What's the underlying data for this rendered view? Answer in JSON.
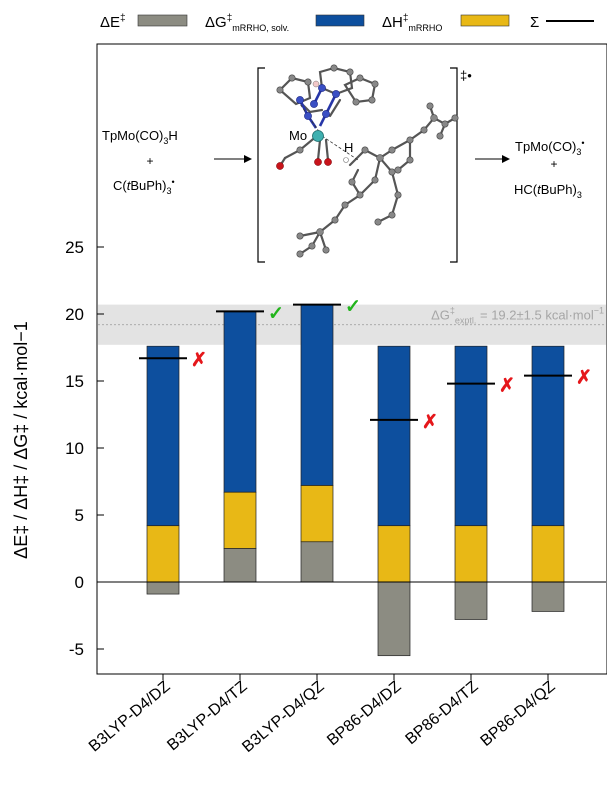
{
  "legend": {
    "items": [
      {
        "label": "ΔE",
        "sup": "‡",
        "sub": "",
        "color": "#8c8c82",
        "kind": "box"
      },
      {
        "label": "ΔG",
        "sup": "‡",
        "sub": "mRRHO, solv.",
        "color": "#0d4f9e",
        "kind": "box"
      },
      {
        "label": "ΔH",
        "sup": "‡",
        "sub": "mRRHO",
        "color": "#e8b816",
        "kind": "box"
      },
      {
        "label": "Σ",
        "sup": "",
        "sub": "",
        "color": "#000000",
        "kind": "line"
      }
    ]
  },
  "scheme": {
    "reactant1": "TpMo(CO)",
    "reactant1_sub": "3",
    "reactant1_tail": "H",
    "plus": "+",
    "reactant2_pre": "C(",
    "reactant2_t": "t",
    "reactant2_post": "BuPh)",
    "reactant2_sub": "3",
    "reactant2_sup": "•",
    "ts_mark": "‡•",
    "mo_label": "Mo",
    "h_label": "H",
    "product1": "TpMo(CO)",
    "product1_sub": "3",
    "product1_sup": "•",
    "product2_pre": "HC(",
    "product2_t": "t",
    "product2_post": "BuPh)",
    "product2_sub": "3",
    "arrow": "→"
  },
  "chart_data": {
    "type": "bar",
    "categories": [
      "B3LYP-D4/DZ",
      "B3LYP-D4/TZ",
      "B3LYP-D4/QZ",
      "BP86-D4/DZ",
      "BP86-D4/TZ",
      "BP86-D4/QZ"
    ],
    "series": [
      {
        "name": "ΔE‡",
        "values": [
          -0.9,
          2.5,
          3.0,
          -5.5,
          -2.8,
          -2.2
        ],
        "color": "#8c8c82"
      },
      {
        "name": "ΔH‡mRRHO",
        "values": [
          4.2,
          6.7,
          7.2,
          4.2,
          4.2,
          4.2
        ],
        "color": "#e8b816"
      },
      {
        "name": "ΔG‡mRRHO, solv.",
        "values": [
          17.6,
          20.2,
          20.7,
          17.6,
          17.6,
          17.6
        ],
        "color": "#0d4f9e"
      }
    ],
    "sum": {
      "name": "Σ",
      "values": [
        16.7,
        20.2,
        20.7,
        12.1,
        14.8,
        15.4
      ]
    },
    "verdict": [
      "cross",
      "check",
      "check",
      "cross",
      "cross",
      "cross"
    ],
    "experimental": {
      "label_main": "ΔG",
      "label_sup": "‡",
      "label_sub": "exptl.",
      "label_tail": " = 19.2±1.5 kcal·mol",
      "label_unit_sup": "−1",
      "value": 19.2,
      "range": [
        17.7,
        20.7
      ]
    },
    "yticks": [
      -5,
      0,
      5,
      10,
      15,
      20,
      25
    ],
    "ytick_labels": [
      "-5",
      "0",
      "5",
      "10",
      "15",
      "20",
      "25"
    ],
    "ylim": [
      -7,
      31
    ],
    "ylabel": "ΔE‡ / ΔH‡ / ΔG‡ / kcal·mol−1",
    "colors": {
      "check": "#22b41c",
      "cross": "#e5171b",
      "band": "#e3e3e3"
    }
  }
}
